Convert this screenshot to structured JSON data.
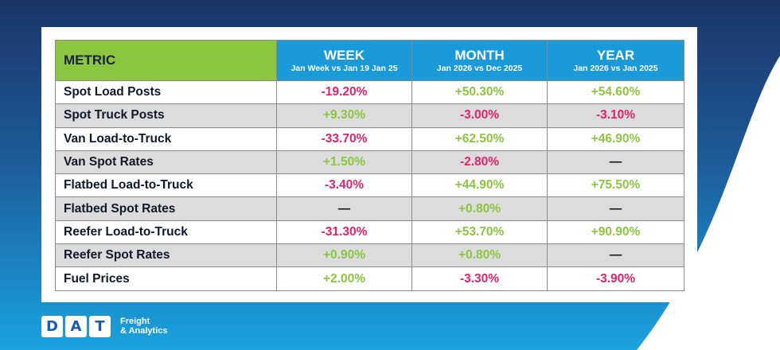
{
  "table": {
    "header": {
      "metric": "METRIC",
      "week": {
        "title": "WEEK",
        "sub": "Jan Week vs Jan 19 Jan 25"
      },
      "month": {
        "title": "MONTH",
        "sub": "Jan 2026 vs Dec 2025"
      },
      "year": {
        "title": "YEAR",
        "sub": "Jan 2026 vs Jan 2025"
      }
    },
    "rows": [
      {
        "metric": "Spot Load Posts",
        "week": "-19.20%",
        "month": "+50.30%",
        "year": "+54.60%"
      },
      {
        "metric": "Spot Truck Posts",
        "week": "+9.30%",
        "month": "-3.00%",
        "year": "-3.10%"
      },
      {
        "metric": "Van Load-to-Truck",
        "week": "-33.70%",
        "month": "+62.50%",
        "year": "+46.90%"
      },
      {
        "metric": "Van Spot Rates",
        "week": "+1.50%",
        "month": "-2.80%",
        "year": "—"
      },
      {
        "metric": "Flatbed Load-to-Truck",
        "week": "-3.40%",
        "month": "+44.90%",
        "year": "+75.50%"
      },
      {
        "metric": "Flatbed Spot Rates",
        "week": "—",
        "month": "+0.80%",
        "year": "—"
      },
      {
        "metric": "Reefer Load-to-Truck",
        "week": "-31.30%",
        "month": "+53.70%",
        "year": "+90.90%"
      },
      {
        "metric": "Reefer Spot Rates",
        "week": "+0.90%",
        "month": "+0.80%",
        "year": "—"
      },
      {
        "metric": "Fuel Prices",
        "week": "+2.00%",
        "month": "-3.30%",
        "year": "-3.90%"
      }
    ]
  },
  "colors": {
    "positive": "#8cc63f",
    "negative": "#e0236e",
    "header_metric_bg": "#8cc63f",
    "header_period_bg": "#1a9ad8",
    "background_dark": "#1b3a6b",
    "background_light": "#1aa0dc"
  },
  "logo": {
    "letters": [
      "D",
      "A",
      "T"
    ],
    "tagline_line1": "Freight",
    "tagline_line2": "& Analytics"
  }
}
